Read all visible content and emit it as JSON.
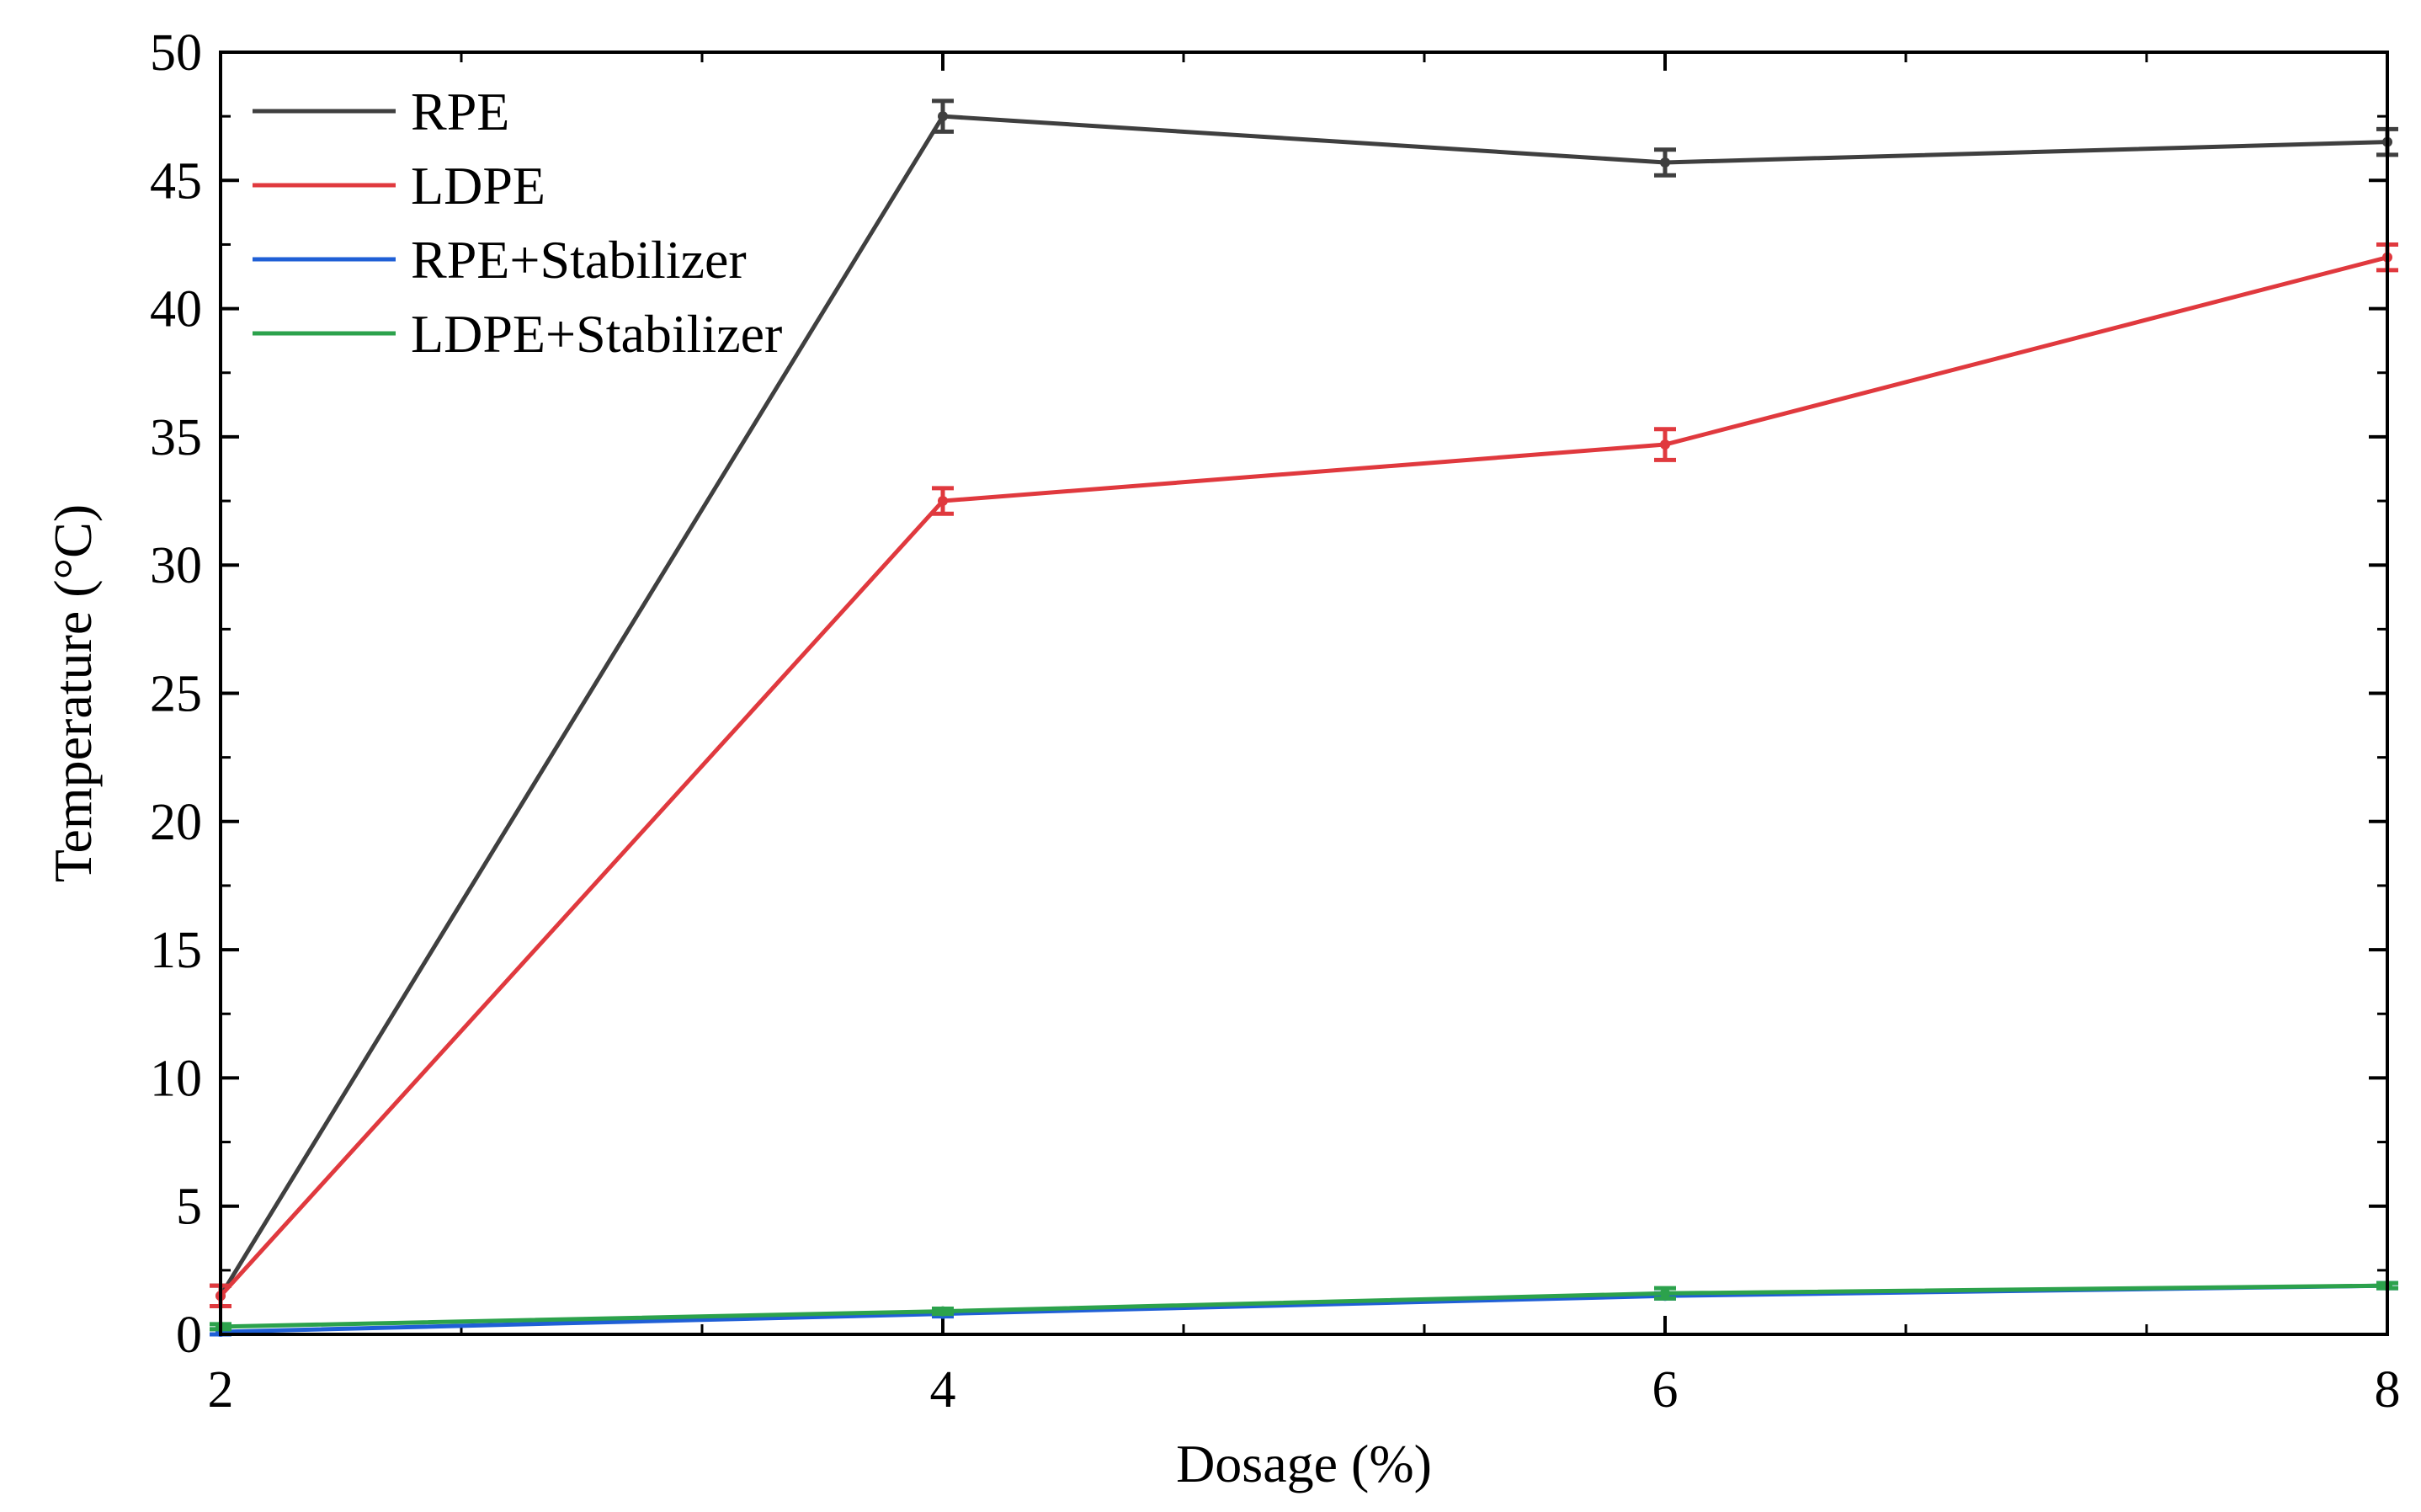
{
  "chart_data": {
    "type": "line",
    "title": "",
    "xlabel": "Dosage (%)",
    "ylabel": "Temperature (°C)",
    "x": [
      2,
      4,
      6,
      8
    ],
    "xlim": [
      2,
      8
    ],
    "ylim": [
      0,
      50
    ],
    "xticks": [
      "2",
      "4",
      "6",
      "8"
    ],
    "yticks": [
      "0",
      "5",
      "10",
      "15",
      "20",
      "25",
      "30",
      "35",
      "40",
      "45",
      "50"
    ],
    "grid": false,
    "legend_position": "top-left",
    "series": [
      {
        "name": "RPE",
        "color": "#3f3f3f",
        "values": [
          1.5,
          47.5,
          45.7,
          46.5
        ],
        "errors": [
          0.4,
          0.6,
          0.5,
          0.5
        ]
      },
      {
        "name": "LDPE",
        "color": "#e0393e",
        "values": [
          1.5,
          32.5,
          34.7,
          42.0
        ],
        "errors": [
          0.4,
          0.5,
          0.6,
          0.5
        ]
      },
      {
        "name": "RPE+Stabilizer",
        "color": "#1f5fd6",
        "values": [
          0.1,
          0.8,
          1.5,
          1.9
        ],
        "errors": [
          0.1,
          0.1,
          0.1,
          0.1
        ]
      },
      {
        "name": "LDPE+Stabilizer",
        "color": "#2ca24c",
        "values": [
          0.3,
          0.9,
          1.6,
          1.9
        ],
        "errors": [
          0.1,
          0.1,
          0.2,
          0.1
        ]
      }
    ]
  }
}
